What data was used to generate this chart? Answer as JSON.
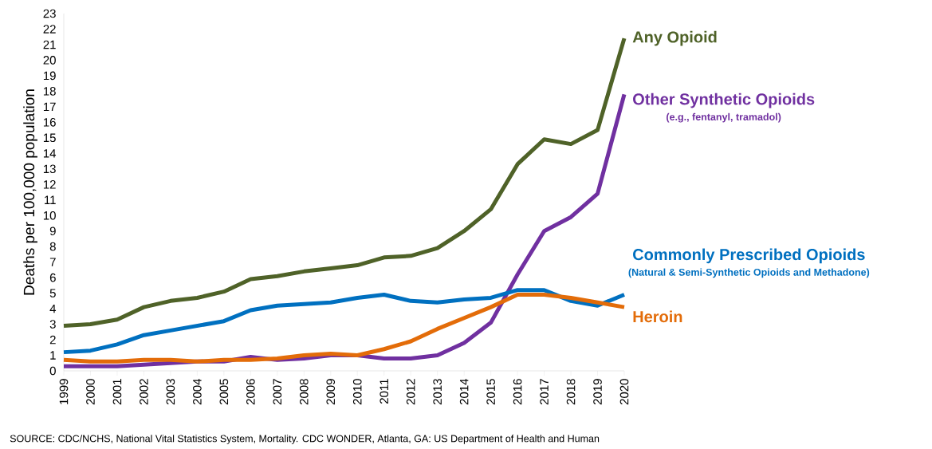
{
  "chart_data": {
    "type": "line",
    "ylabel": "Deaths per 100,000 population",
    "x": [
      1999,
      2000,
      2001,
      2002,
      2003,
      2004,
      2005,
      2006,
      2007,
      2008,
      2009,
      2010,
      2011,
      2012,
      2013,
      2014,
      2015,
      2016,
      2017,
      2018,
      2019,
      2020
    ],
    "series": [
      {
        "name": "Any Opioid",
        "color": "#4f6228",
        "values": [
          2.9,
          3.0,
          3.3,
          4.1,
          4.5,
          4.7,
          5.1,
          5.9,
          6.1,
          6.4,
          6.6,
          6.8,
          7.3,
          7.4,
          7.9,
          9.0,
          10.4,
          13.3,
          14.9,
          14.6,
          15.5,
          21.4
        ]
      },
      {
        "name": "Other Synthetic Opioids",
        "color": "#7030a0",
        "values": [
          0.3,
          0.3,
          0.3,
          0.4,
          0.5,
          0.6,
          0.6,
          0.9,
          0.7,
          0.8,
          1.0,
          1.0,
          0.8,
          0.8,
          1.0,
          1.8,
          3.1,
          6.2,
          9.0,
          9.9,
          11.4,
          17.8
        ]
      },
      {
        "name": "Commonly Prescribed Opioids",
        "color": "#0070c0",
        "values": [
          1.2,
          1.3,
          1.7,
          2.3,
          2.6,
          2.9,
          3.2,
          3.9,
          4.2,
          4.3,
          4.4,
          4.7,
          4.9,
          4.5,
          4.4,
          4.6,
          4.7,
          5.2,
          5.2,
          4.5,
          4.2,
          4.9
        ]
      },
      {
        "name": "Heroin",
        "color": "#e36c09",
        "values": [
          0.7,
          0.6,
          0.6,
          0.7,
          0.7,
          0.6,
          0.7,
          0.7,
          0.8,
          1.0,
          1.1,
          1.0,
          1.4,
          1.9,
          2.7,
          3.4,
          4.1,
          4.9,
          4.9,
          4.7,
          4.4,
          4.1
        ]
      }
    ],
    "annotations": [
      "(e.g., fentanyl, tramadol)",
      "(Natural & Semi-Synthetic Opioids and Methadone)",
      "SOURCE: CDC/NCHS, National Vital Statistics System, Mortality. CDC WONDER, Atlanta, GA: US Department of Health and Human"
    ],
    "xlim": [
      1999,
      2020
    ],
    "xticks": [
      1999,
      2000,
      2001,
      2002,
      2003,
      2004,
      2005,
      2006,
      2007,
      2008,
      2009,
      2010,
      2011,
      2012,
      2013,
      2014,
      2015,
      2016,
      2017,
      2018,
      2019,
      2020
    ],
    "ylim": [
      0,
      23
    ],
    "yticks": [
      0,
      1,
      2,
      3,
      4,
      5,
      6,
      7,
      8,
      9,
      10,
      11,
      12,
      13,
      14,
      15,
      16,
      17,
      18,
      19,
      20,
      21,
      22,
      23
    ]
  }
}
